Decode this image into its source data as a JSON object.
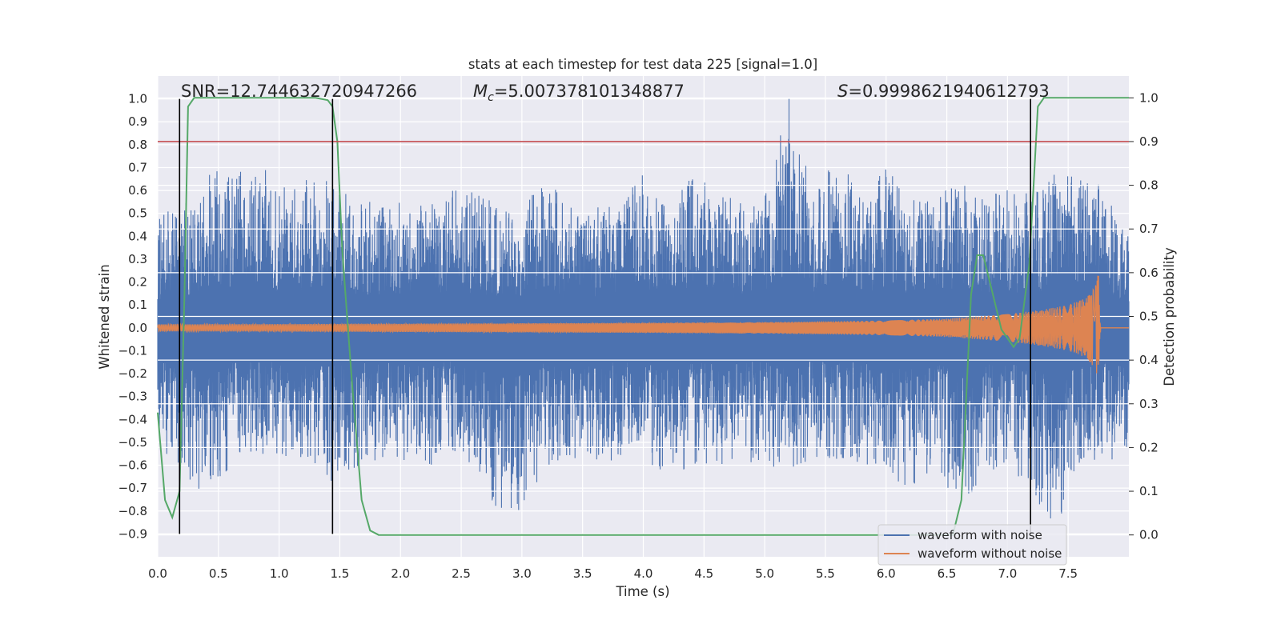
{
  "chart_data": {
    "type": "line",
    "title": "stats at each timestep for test data 225 [signal=1.0]",
    "xlabel": "Time (s)",
    "ylabel": "Whitened strain",
    "y2label": "Detection probability",
    "xlim": [
      0.0,
      8.0
    ],
    "ylim": [
      -1.0,
      1.1
    ],
    "y2lim": [
      -0.05,
      1.05
    ],
    "x_ticks": [
      "0.0",
      "0.5",
      "1.0",
      "1.5",
      "2.0",
      "2.5",
      "3.0",
      "3.5",
      "4.0",
      "4.5",
      "5.0",
      "5.5",
      "6.0",
      "6.5",
      "7.0",
      "7.5"
    ],
    "y_ticks": [
      "1.0",
      "0.9",
      "0.8",
      "0.7",
      "0.6",
      "0.5",
      "0.4",
      "0.3",
      "0.2",
      "0.1",
      "0.0",
      "−0.1",
      "−0.2",
      "−0.3",
      "−0.4",
      "−0.5",
      "−0.6",
      "−0.7",
      "−0.8",
      "−0.9"
    ],
    "y2_ticks": [
      "1.0",
      "0.9",
      "0.8",
      "0.7",
      "0.6",
      "0.5",
      "0.4",
      "0.3",
      "0.2",
      "0.1",
      "0.0"
    ],
    "annotations": {
      "snr": "SNR=12.744632720947266",
      "mc_value": "=5.007378101348877",
      "s_value": "=0.9998621940612793"
    },
    "threshold_line": {
      "axis": "y2",
      "value": 0.9,
      "color": "#c44e52"
    },
    "vertical_markers": {
      "x": [
        0.18,
        1.44,
        7.19
      ],
      "y_range": [
        -0.9,
        1.0
      ],
      "color": "#000000"
    },
    "legend": {
      "position": "lower-right",
      "entries": [
        "waveform with noise",
        "waveform without noise"
      ]
    },
    "colors": {
      "noisy": "#4c72b0",
      "clean": "#dd8452",
      "probability": "#55a868",
      "background": "#eaeaf2"
    },
    "series": [
      {
        "name": "waveform with noise",
        "envelope": {
          "t": [
            0.0,
            0.2,
            0.4,
            0.6,
            0.8,
            1.0,
            1.2,
            1.4,
            1.6,
            1.8,
            2.0,
            2.2,
            2.4,
            2.6,
            2.8,
            3.0,
            3.2,
            3.4,
            3.6,
            3.8,
            4.0,
            4.2,
            4.4,
            4.6,
            4.8,
            5.0,
            5.2,
            5.4,
            5.6,
            5.8,
            6.0,
            6.2,
            6.4,
            6.6,
            6.8,
            7.0,
            7.2,
            7.4,
            7.6,
            7.8,
            8.0
          ],
          "upper": [
            0.5,
            0.53,
            0.68,
            0.72,
            0.8,
            0.62,
            0.65,
            0.72,
            0.55,
            0.55,
            0.58,
            0.55,
            0.6,
            0.6,
            0.55,
            0.55,
            0.65,
            0.55,
            0.55,
            0.55,
            0.68,
            0.55,
            0.68,
            0.6,
            0.55,
            0.58,
            1.0,
            0.6,
            0.75,
            0.58,
            0.7,
            0.6,
            0.55,
            0.7,
            0.6,
            0.62,
            0.6,
            0.68,
            0.68,
            0.62,
            0.4
          ],
          "lower": [
            -0.55,
            -0.62,
            -0.76,
            -0.6,
            -0.58,
            -0.58,
            -0.6,
            -0.68,
            -0.62,
            -0.6,
            -0.58,
            -0.62,
            -0.58,
            -0.6,
            -0.8,
            -0.8,
            -0.6,
            -0.58,
            -0.6,
            -0.58,
            -0.58,
            -0.65,
            -0.62,
            -0.6,
            -0.58,
            -0.6,
            -0.62,
            -0.58,
            -0.58,
            -0.6,
            -0.65,
            -0.72,
            -0.6,
            -0.8,
            -0.65,
            -0.6,
            -0.72,
            -0.88,
            -0.58,
            -0.6,
            -0.55
          ]
        }
      },
      {
        "name": "waveform without noise",
        "envelope": {
          "t": [
            0.0,
            1.0,
            2.0,
            3.0,
            4.0,
            5.0,
            6.0,
            6.5,
            7.0,
            7.3,
            7.5,
            7.65,
            7.72,
            7.75,
            7.76,
            7.77,
            8.0
          ],
          "amplitude": [
            0.015,
            0.016,
            0.018,
            0.02,
            0.022,
            0.025,
            0.032,
            0.04,
            0.06,
            0.08,
            0.1,
            0.13,
            0.18,
            0.24,
            0.05,
            0.0,
            0.0
          ]
        }
      },
      {
        "name": "detection probability",
        "axis": "y2",
        "x": [
          0.0,
          0.06,
          0.12,
          0.18,
          0.22,
          0.25,
          0.3,
          1.3,
          1.4,
          1.44,
          1.48,
          1.52,
          1.6,
          1.68,
          1.75,
          1.82,
          6.55,
          6.62,
          6.7,
          6.75,
          6.8,
          6.88,
          6.95,
          7.05,
          7.1,
          7.18,
          7.25,
          7.3,
          7.5,
          8.0
        ],
        "y": [
          0.28,
          0.08,
          0.04,
          0.1,
          0.55,
          0.98,
          1.0,
          1.0,
          0.995,
          0.98,
          0.9,
          0.65,
          0.35,
          0.08,
          0.01,
          0.0,
          0.0,
          0.08,
          0.55,
          0.64,
          0.64,
          0.55,
          0.47,
          0.43,
          0.45,
          0.62,
          0.98,
          1.0,
          1.0,
          1.0
        ]
      }
    ]
  }
}
